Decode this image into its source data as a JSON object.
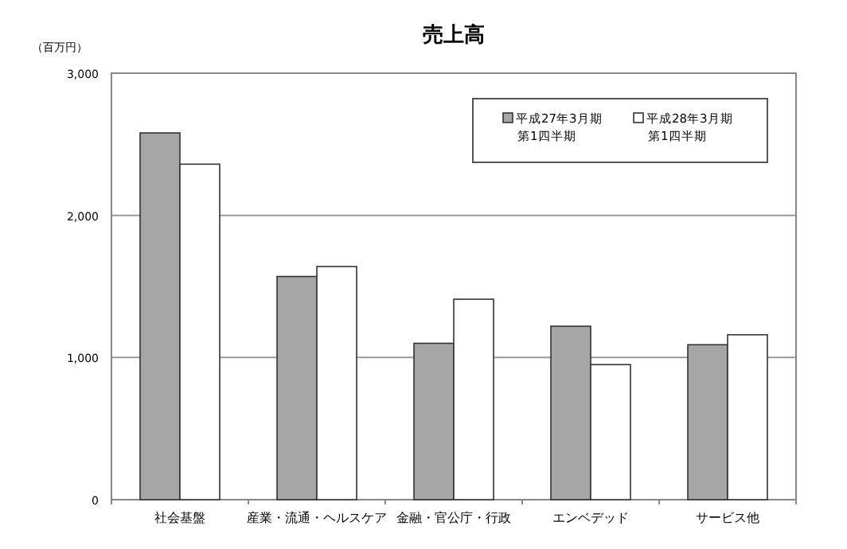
{
  "chart_data": {
    "type": "bar",
    "title": "売上高",
    "ylabel": "（百万円）",
    "categories": [
      "社会基盤",
      "産業・流通・ヘルスケア",
      "金融・官公庁・行政",
      "エンベデッド",
      "サービス他"
    ],
    "series": [
      {
        "name": "平成27年3月期第1四半期",
        "color": "#a6a6a6",
        "values": [
          2580,
          1570,
          1100,
          1220,
          1090
        ]
      },
      {
        "name": "平成28年3月期第1四半期",
        "color": "#ffffff",
        "values": [
          2360,
          1640,
          1410,
          950,
          1160
        ]
      }
    ],
    "ylim": [
      0,
      3000
    ],
    "yticks": [
      {
        "value": 0,
        "label": "0"
      },
      {
        "value": 1000,
        "label": "1,000"
      },
      {
        "value": 2000,
        "label": "2,000"
      },
      {
        "value": 3000,
        "label": "3,000"
      }
    ],
    "grid": "y",
    "legend": "top right"
  }
}
